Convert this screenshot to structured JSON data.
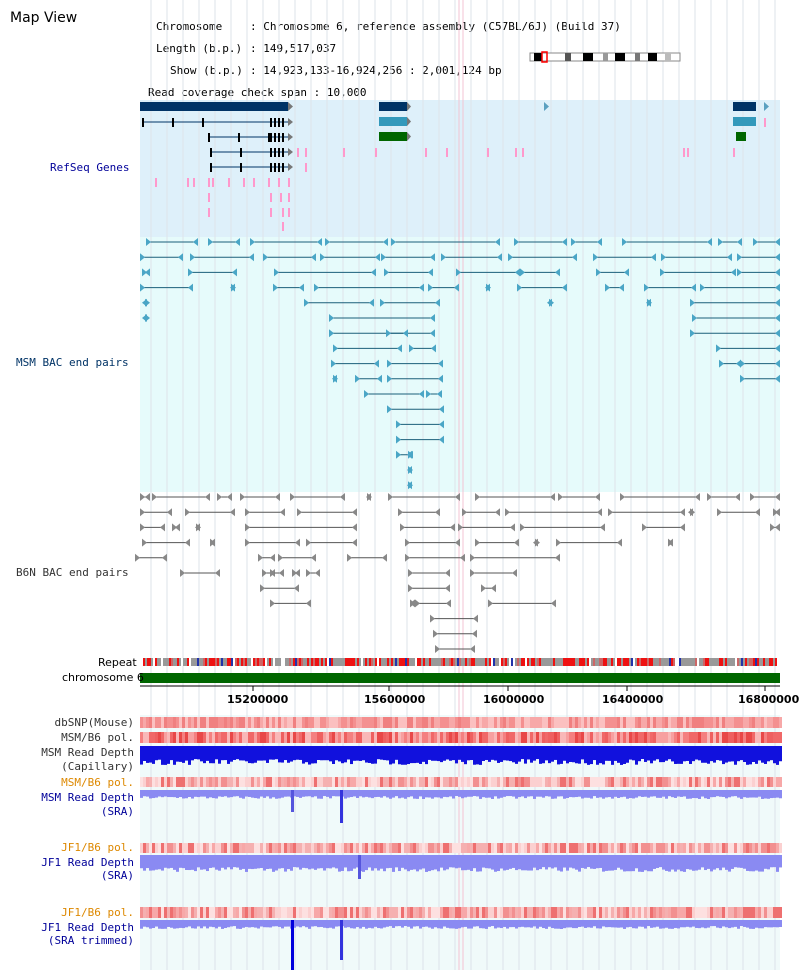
{
  "map_title": "Map View",
  "info": {
    "chromosome_label": "Chromosome",
    "chromosome_value": ": Chromosome 6, reference assembly (C57BL/6J) (Build 37)",
    "length_label": "Length (b.p.)",
    "length_value": ": 149,517,037",
    "show_label": "Show (b.p.)",
    "show_value": ": 14,923,133-16,924,256 : 2,001,124 bp",
    "coverage_label": "Read coverage check span",
    "coverage_value": ": 10,000"
  },
  "tracks": {
    "refseq": "RefSeq Genes",
    "msm_bac": "MSM BAC end pairs",
    "b6n_bac": "B6N BAC end pairs",
    "repeat": "Repeat",
    "chromosome": "chromosome 6",
    "dbsnp": "dbSNP(Mouse)",
    "msm_b6_pol_1": "MSM/B6 pol.",
    "msm_depth_cap_1": "MSM Read Depth",
    "msm_depth_cap_2": "(Capillary)",
    "msm_b6_pol_2": "MSM/B6 pol.",
    "msm_depth_sra_1": "MSM Read Depth",
    "msm_depth_sra_2": "(SRA)",
    "jf1_b6_pol_1": "JF1/B6 pol.",
    "jf1_depth_sra_1": "JF1 Read Depth",
    "jf1_depth_sra_2": "(SRA)",
    "jf1_b6_pol_2": "JF1/B6 pol.",
    "jf1_depth_trim_1": "JF1 Read Depth",
    "jf1_depth_trim_2": "(SRA trimmed)"
  },
  "axis_ticks": [
    "15200000",
    "15600000",
    "16000000",
    "16400000",
    "16800000"
  ],
  "colors": {
    "refseq_bg": "#def0fa",
    "bac_bg": "#e6fbfb",
    "navy": "#003366",
    "teal": "#3399bb",
    "green": "#006600",
    "pink": "#ff99cc",
    "label_blue": "#000099",
    "label_orange": "#dd8800",
    "depth_blue": "#0000dd",
    "depth_light": "#8888ee"
  }
}
